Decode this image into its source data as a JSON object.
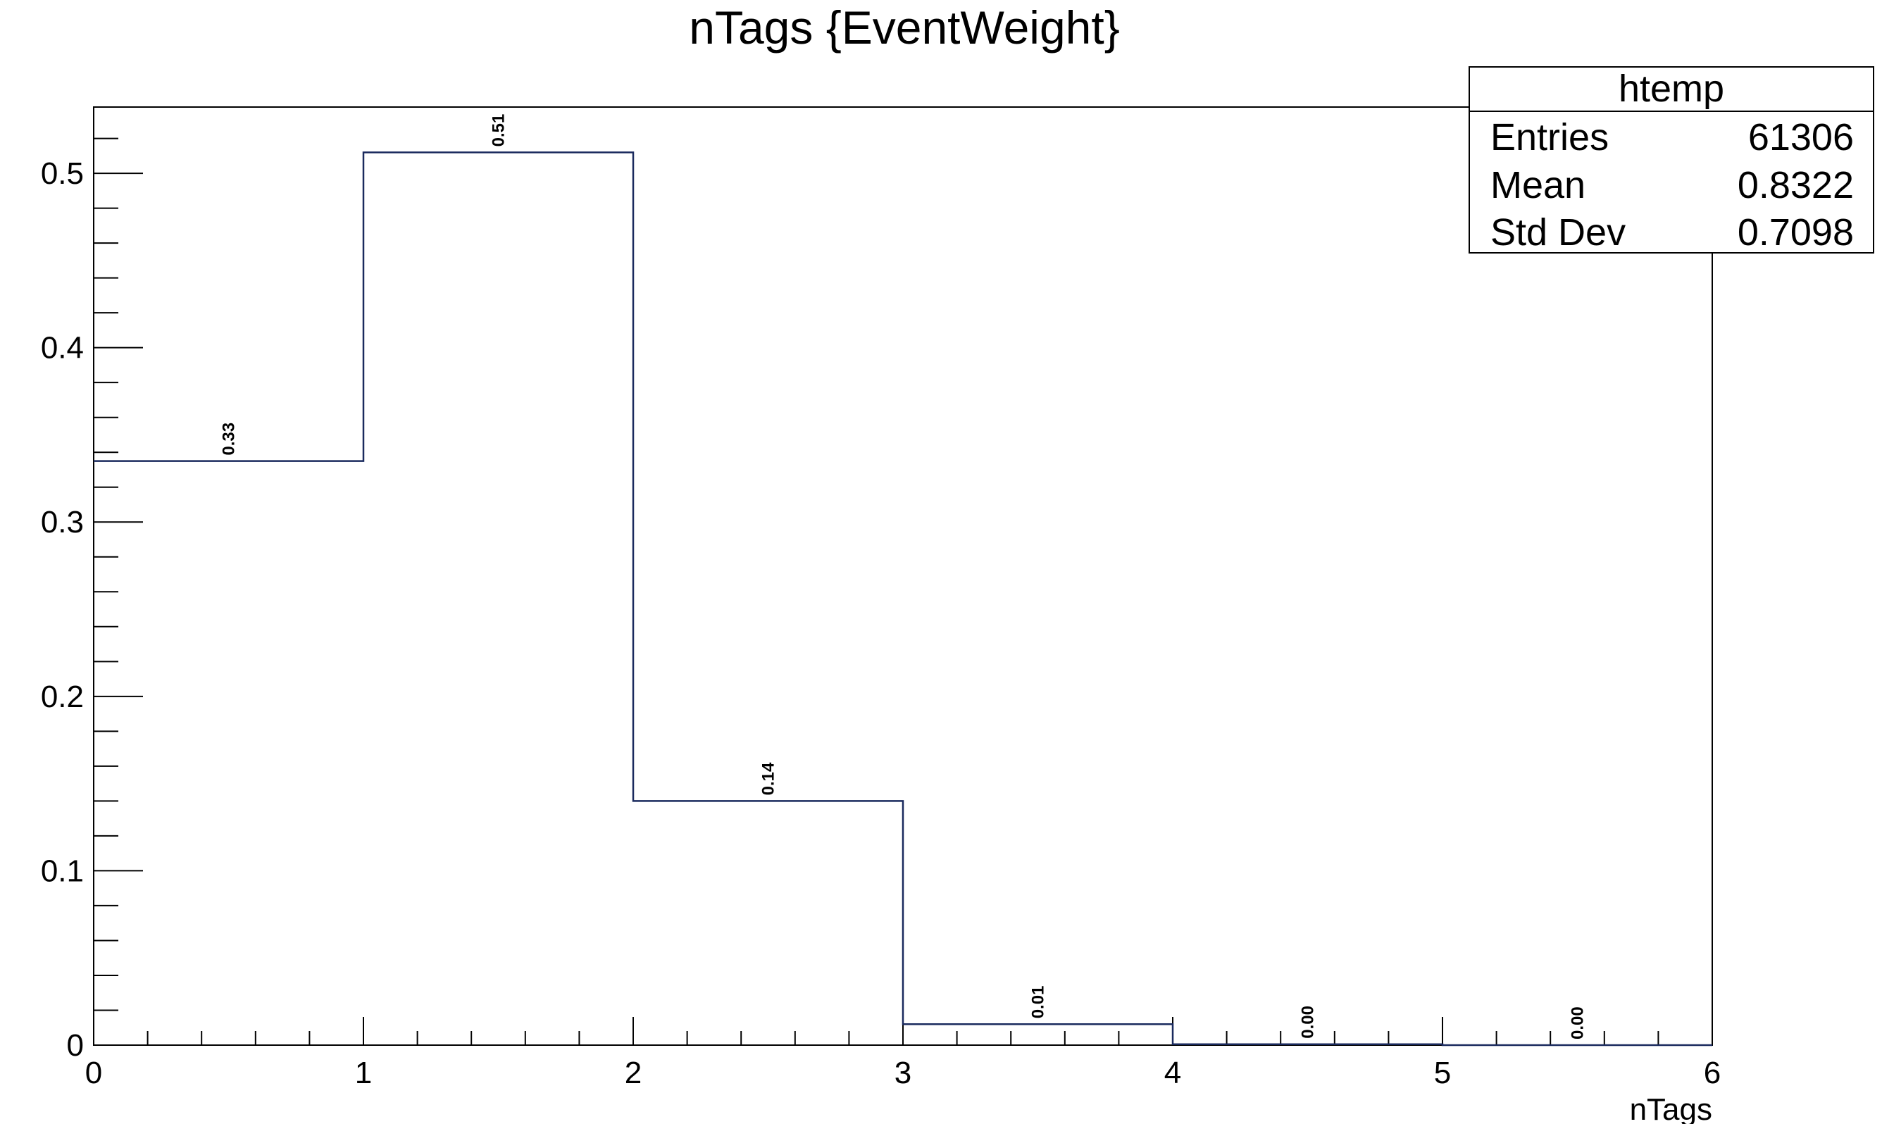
{
  "chart_data": {
    "type": "bar",
    "title": "nTags {EventWeight}",
    "xlabel": "nTags",
    "ylabel": "",
    "xlim": [
      0,
      6
    ],
    "ylim": [
      0,
      0.538
    ],
    "x_ticks": [
      "0",
      "1",
      "2",
      "3",
      "4",
      "5",
      "6"
    ],
    "y_ticks": [
      "0",
      "0.1",
      "0.2",
      "0.3",
      "0.4",
      "0.5"
    ],
    "bins": [
      {
        "low": 0,
        "high": 1,
        "value": 0.335,
        "label": "0.33"
      },
      {
        "low": 1,
        "high": 2,
        "value": 0.512,
        "label": "0.51"
      },
      {
        "low": 2,
        "high": 3,
        "value": 0.14,
        "label": "0.14"
      },
      {
        "low": 3,
        "high": 4,
        "value": 0.012,
        "label": "0.01"
      },
      {
        "low": 4,
        "high": 5,
        "value": 0.0005,
        "label": "0.00"
      },
      {
        "low": 5,
        "high": 6,
        "value": 0.0,
        "label": "0.00"
      }
    ],
    "line_color": "#1a2a5e",
    "grid": false,
    "stats_box": {
      "title": "htemp",
      "rows": [
        {
          "label": "Entries",
          "value": "61306"
        },
        {
          "label": "Mean",
          "value": "0.8322"
        },
        {
          "label": "Std Dev",
          "value": "0.7098"
        }
      ],
      "position": "top-right"
    }
  }
}
